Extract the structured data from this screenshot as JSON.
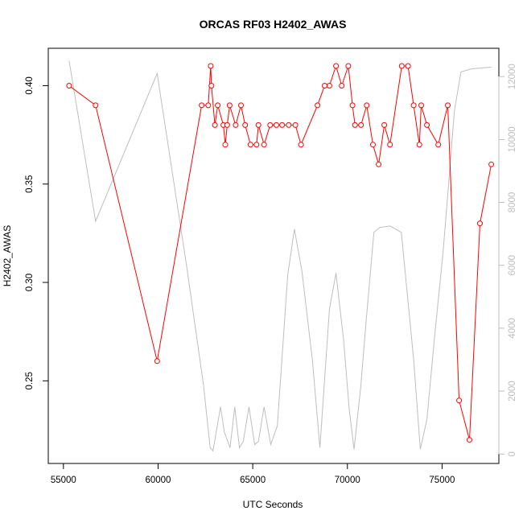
{
  "chart_data": {
    "type": "line",
    "title": "ORCAS RF03 H2402_AWAS",
    "xlabel": "UTC Seconds",
    "ylabel": "H2402_AWAS",
    "y2label": "",
    "xlim": [
      54200,
      78000
    ],
    "ylim": [
      0.208,
      0.419
    ],
    "y2lim": [
      -300,
      12900
    ],
    "xticks": [
      55000,
      60000,
      65000,
      70000,
      75000
    ],
    "xtick_labels": [
      "55000",
      "60000",
      "65000",
      "70000",
      "75000"
    ],
    "yticks": [
      0.25,
      0.3,
      0.35,
      0.4
    ],
    "ytick_labels": [
      "0.25",
      "0.30",
      "0.35",
      "0.40"
    ],
    "y2ticks": [
      0,
      2000,
      4000,
      6000,
      8000,
      10000,
      12000
    ],
    "y2tick_labels": [
      "0",
      "2000",
      "4000",
      "6000",
      "8000",
      "10000",
      "12000"
    ],
    "grid": false,
    "series": [
      {
        "axis": "left",
        "color": "#ff0000",
        "marker": "open-circle",
        "x": [
          55300,
          56700,
          59950,
          62300,
          62650,
          62780,
          62820,
          63000,
          63150,
          63450,
          63550,
          63650,
          63780,
          64100,
          64380,
          64600,
          64880,
          65200,
          65300,
          65600,
          65920,
          66250,
          66550,
          66900,
          67250,
          67550,
          68420,
          68800,
          69050,
          69400,
          69700,
          70050,
          70270,
          70400,
          70720,
          71020,
          71350,
          71650,
          71950,
          72250,
          72870,
          73200,
          73500,
          73800,
          73900,
          74200,
          74800,
          75300,
          75900,
          76450,
          77000,
          77600
        ],
        "y": [
          0.4,
          0.39,
          0.26,
          0.39,
          0.39,
          0.41,
          0.4,
          0.38,
          0.39,
          0.38,
          0.37,
          0.38,
          0.39,
          0.38,
          0.39,
          0.38,
          0.37,
          0.37,
          0.38,
          0.37,
          0.38,
          0.38,
          0.38,
          0.38,
          0.38,
          0.37,
          0.39,
          0.4,
          0.4,
          0.41,
          0.4,
          0.41,
          0.39,
          0.38,
          0.38,
          0.39,
          0.37,
          0.36,
          0.38,
          0.37,
          0.41,
          0.41,
          0.39,
          0.37,
          0.39,
          0.38,
          0.37,
          0.39,
          0.24,
          0.22,
          0.33,
          0.36
        ]
      },
      {
        "axis": "right",
        "color": "#bebebe",
        "marker": "none",
        "x": [
          55300,
          56700,
          59950,
          61500,
          62400,
          62750,
          62900,
          63300,
          63500,
          63800,
          64050,
          64300,
          64500,
          64800,
          65100,
          65300,
          65600,
          65950,
          66300,
          66850,
          67200,
          67600,
          68150,
          68550,
          69050,
          69400,
          69800,
          70100,
          70350,
          70700,
          71000,
          71400,
          71700,
          72250,
          72850,
          73500,
          73850,
          74200,
          74600,
          75050,
          75350,
          75650,
          76000,
          76600,
          77600
        ],
        "y": [
          12500,
          7400,
          12100,
          6000,
          2200,
          200,
          100,
          1500,
          700,
          200,
          1500,
          200,
          400,
          1500,
          300,
          400,
          1500,
          300,
          900,
          5700,
          7150,
          5800,
          3000,
          200,
          4600,
          5750,
          3600,
          1400,
          150,
          2100,
          4300,
          7050,
          7200,
          7250,
          7050,
          3000,
          150,
          1100,
          3700,
          6400,
          8600,
          10900,
          12150,
          12250,
          12300
        ]
      }
    ]
  }
}
